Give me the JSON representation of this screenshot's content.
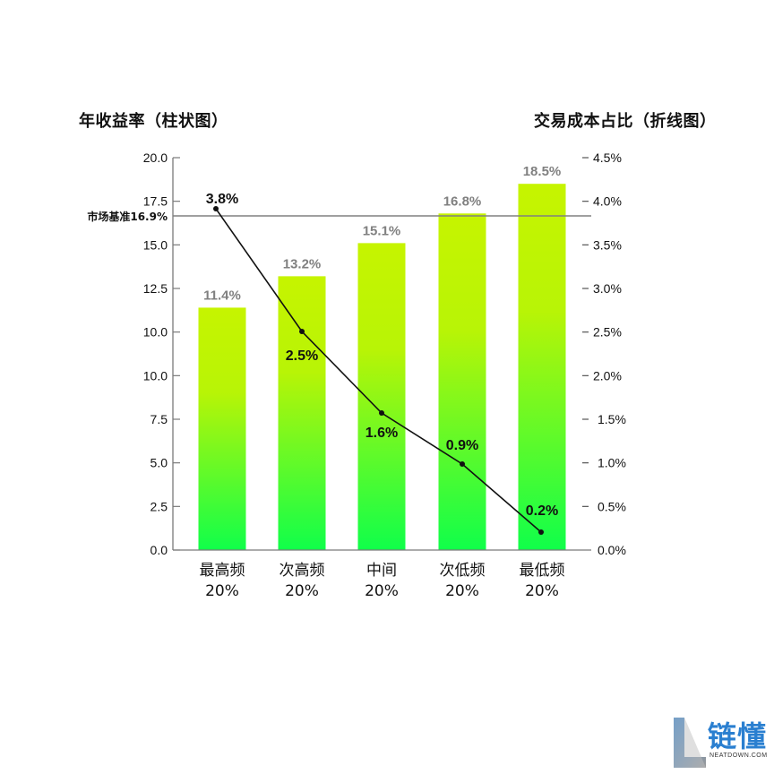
{
  "titles": {
    "left": "年收益率（柱状图）",
    "right": "交易成本占比（折线图）"
  },
  "benchmark": {
    "label": "市场基准16.9%",
    "value": 16.9
  },
  "categories": [
    {
      "name": "最高频",
      "share": "20%"
    },
    {
      "name": "次高频",
      "share": "20%"
    },
    {
      "name": "中间",
      "share": "20%"
    },
    {
      "name": "次低频",
      "share": "20%"
    },
    {
      "name": "最低频",
      "share": "20%"
    }
  ],
  "left_ticks": [
    "20.0",
    "17.5",
    "15.0",
    "12.5",
    "10.0",
    "10.0",
    "7.5",
    "5.0",
    "2.5",
    "0.0"
  ],
  "right_ticks": [
    "4.5%",
    "4.0%",
    "3.5%",
    "3.0%",
    "2.5%",
    "2.0%",
    "1.5%",
    "1.0%",
    "0.5%",
    "0.0%"
  ],
  "bar_labels": [
    "11.4%",
    "13.2%",
    "15.1%",
    "16.8%",
    "18.5%"
  ],
  "line_labels": [
    "3.8%",
    "2.5%",
    "1.6%",
    "0.9%",
    "0.2%"
  ],
  "colors": {
    "bar_top": "#c6f400",
    "bar_bottom": "#10ff4a",
    "line": "#111111",
    "benchmark": "#808080",
    "bar_label": "#808080",
    "logo": "#2a7fd0"
  },
  "logo": {
    "text": "链懂",
    "sub": "NEATDOWN.COM"
  },
  "chart_data": {
    "type": "bar+line",
    "title": "",
    "categories": [
      "最高频 20%",
      "次高频 20%",
      "中间 20%",
      "次低频 20%",
      "最低频 20%"
    ],
    "series": [
      {
        "name": "年收益率（柱状图）",
        "type": "bar",
        "axis": "left",
        "values": [
          11.4,
          13.2,
          15.1,
          16.8,
          18.5
        ]
      },
      {
        "name": "交易成本占比（折线图）",
        "type": "line",
        "axis": "right",
        "values": [
          3.8,
          2.5,
          1.6,
          0.9,
          0.2
        ]
      }
    ],
    "annotations": [
      {
        "type": "hline",
        "axis": "left",
        "value": 16.9,
        "label": "市场基准16.9%"
      }
    ],
    "ylabel_left": "年收益率（柱状图）",
    "ylabel_right": "交易成本占比（折线图）",
    "ylim_left": [
      0,
      20
    ],
    "ylim_right": [
      0,
      4.5
    ],
    "left_tick_labels": [
      "0.0",
      "2.5",
      "5.0",
      "7.5",
      "10.0",
      "10.0",
      "12.5",
      "15.0",
      "17.5",
      "20.0"
    ],
    "right_tick_labels": [
      "0.0%",
      "0.5%",
      "1.0%",
      "1.5%",
      "2.0%",
      "2.5%",
      "3.0%",
      "3.5%",
      "4.0%",
      "4.5%"
    ],
    "grid": false,
    "legend": "none"
  }
}
